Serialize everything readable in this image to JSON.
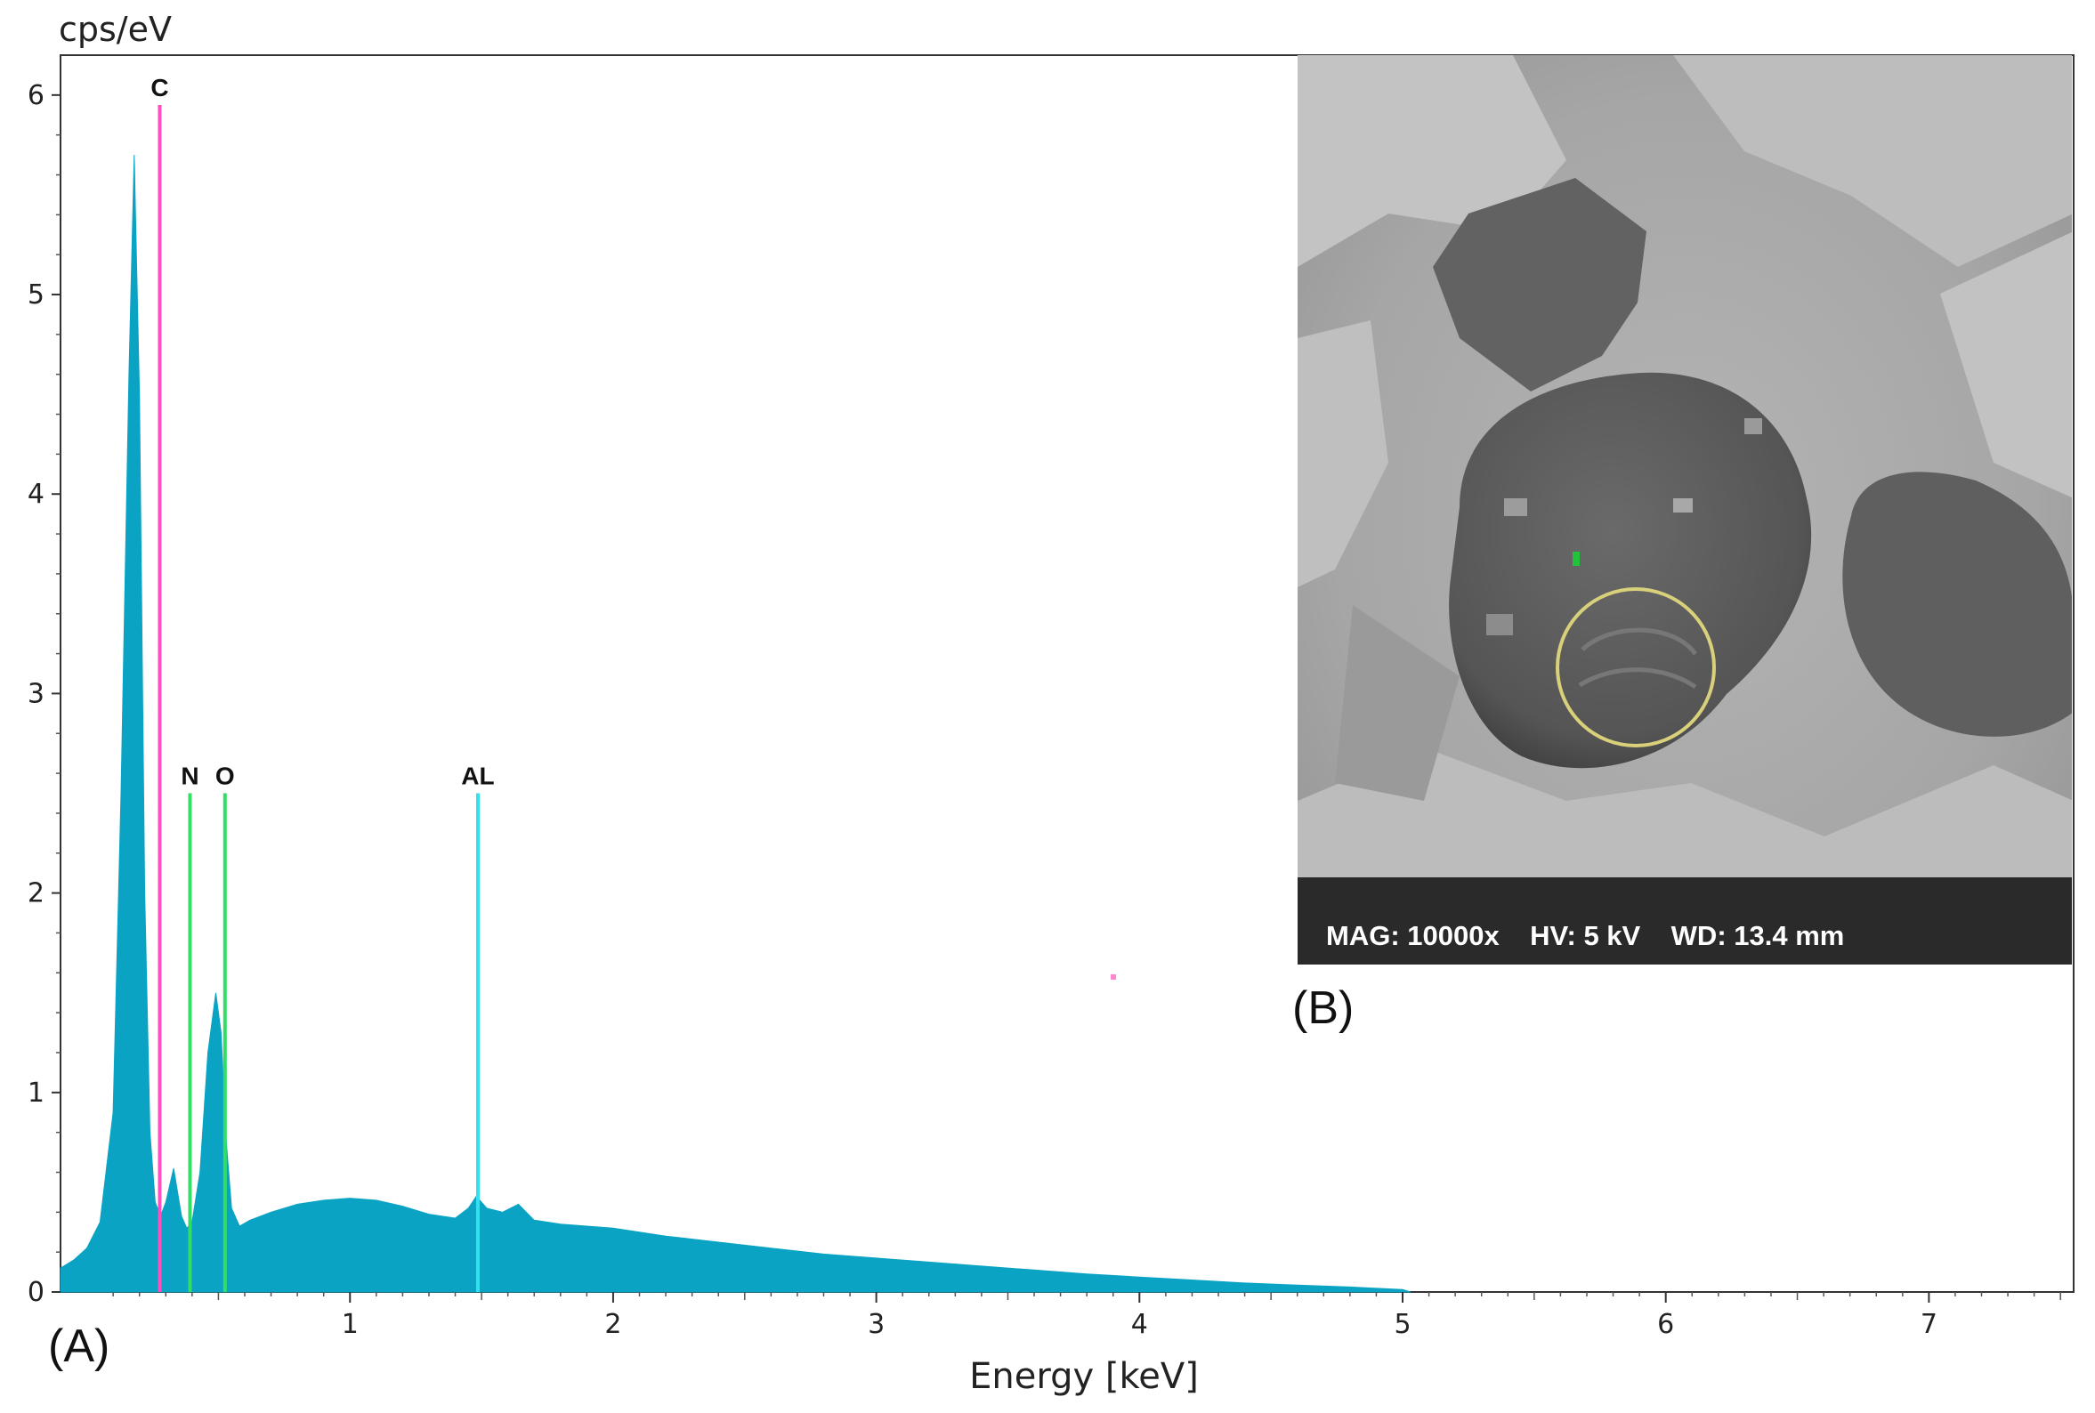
{
  "chart_data": {
    "type": "area",
    "ylabel": "cps/eV",
    "xlabel": "Energy [keV]",
    "xlim": [
      -0.1,
      7.55
    ],
    "ylim": [
      0,
      6.2
    ],
    "x_ticks": [
      "1",
      "2",
      "3",
      "4",
      "5",
      "6",
      "7"
    ],
    "y_ticks": [
      "0",
      "1",
      "2",
      "3",
      "4",
      "5",
      "6"
    ],
    "spectrum": {
      "color": "#0aa3c4",
      "x": [
        -0.1,
        -0.05,
        0.0,
        0.05,
        0.1,
        0.13,
        0.16,
        0.18,
        0.2,
        0.22,
        0.24,
        0.26,
        0.28,
        0.3,
        0.33,
        0.36,
        0.38,
        0.4,
        0.43,
        0.46,
        0.49,
        0.51,
        0.53,
        0.55,
        0.58,
        0.62,
        0.7,
        0.8,
        0.9,
        1.0,
        1.1,
        1.2,
        1.3,
        1.4,
        1.45,
        1.48,
        1.52,
        1.58,
        1.64,
        1.7,
        1.8,
        1.9,
        2.0,
        2.1,
        2.2,
        2.4,
        2.6,
        2.8,
        3.0,
        3.2,
        3.4,
        3.6,
        3.8,
        4.0,
        4.2,
        4.4,
        4.6,
        4.8,
        5.0,
        5.03
      ],
      "y": [
        0.12,
        0.16,
        0.22,
        0.35,
        0.9,
        2.5,
        4.6,
        5.7,
        4.5,
        2.0,
        0.8,
        0.45,
        0.38,
        0.45,
        0.62,
        0.38,
        0.32,
        0.35,
        0.6,
        1.2,
        1.5,
        1.3,
        0.75,
        0.42,
        0.33,
        0.36,
        0.4,
        0.44,
        0.46,
        0.47,
        0.46,
        0.43,
        0.39,
        0.37,
        0.42,
        0.48,
        0.42,
        0.4,
        0.44,
        0.36,
        0.34,
        0.33,
        0.32,
        0.3,
        0.28,
        0.25,
        0.22,
        0.19,
        0.17,
        0.15,
        0.13,
        0.11,
        0.09,
        0.075,
        0.06,
        0.045,
        0.035,
        0.025,
        0.012,
        0.0
      ]
    },
    "element_lines": [
      {
        "label": "C",
        "energy": 0.277,
        "height": 5.95,
        "color": "#ff4fbf"
      },
      {
        "label": "N",
        "energy": 0.392,
        "height": 2.5,
        "color": "#33dd66"
      },
      {
        "label": "O",
        "energy": 0.525,
        "height": 2.5,
        "color": "#33dd66"
      },
      {
        "label": "AL",
        "energy": 1.486,
        "height": 2.5,
        "color": "#33e0ee"
      }
    ],
    "panel_labels": [
      "(A)",
      "(B)"
    ]
  },
  "inset": {
    "sem_info": "MAG: 10000x    HV: 5 kV    WD: 13.4 mm"
  }
}
